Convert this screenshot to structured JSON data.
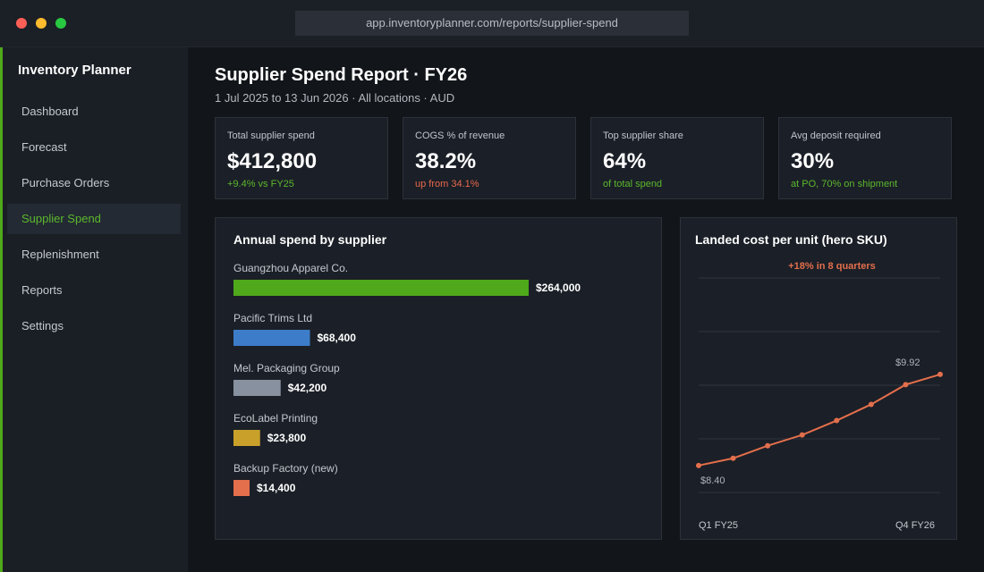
{
  "browser": {
    "url": "app.inventoryplanner.com/reports/supplier-spend"
  },
  "sidebar": {
    "brand": "Inventory Planner",
    "items": [
      "Dashboard",
      "Forecast",
      "Purchase Orders",
      "Supplier Spend",
      "Replenishment",
      "Reports",
      "Settings"
    ],
    "active_item": 3
  },
  "header": {
    "title": "Supplier Spend Report · FY26",
    "subtitle": "1 Jul 2025 to 13 Jun 2026 · All locations · AUD"
  },
  "kpis": [
    {
      "label": "Total supplier spend",
      "value": "$412,800",
      "note": "+9.4% vs FY25",
      "note_color": "#5cb82e"
    },
    {
      "label": "COGS % of revenue",
      "value": "38.2%",
      "note": "up from 34.1%",
      "note_color": "#e8694d"
    },
    {
      "label": "Top supplier share",
      "value": "64%",
      "note": "of total spend",
      "note_color": "#5cb82e"
    },
    {
      "label": "Avg deposit required",
      "value": "30%",
      "note": "at PO, 70% on shipment",
      "note_color": "#5cb82e"
    }
  ],
  "chart_data": [
    {
      "type": "bar",
      "orientation": "horizontal",
      "title": "Annual spend by supplier",
      "categories": [
        "Guangzhou Apparel Co.",
        "Pacific Trims Ltd",
        "Mel. Packaging Group",
        "EcoLabel Printing",
        "Backup Factory (new)"
      ],
      "values": [
        264000,
        68400,
        42200,
        23800,
        14400
      ],
      "value_labels": [
        "$264,000",
        "$68,400",
        "$42,200",
        "$23,800",
        "$14,400"
      ],
      "colors": [
        "#4fa91b",
        "#3d7cc9",
        "#8891a0",
        "#c9a12a",
        "#e36f4c"
      ]
    },
    {
      "type": "line",
      "title": "Landed cost per unit (hero SKU)",
      "annotation": "+18% in 8 quarters",
      "categories": [
        "Q1 FY25",
        null,
        null,
        null,
        null,
        null,
        null,
        "Q4 FY26"
      ],
      "values": [
        8.4,
        8.52,
        8.73,
        8.91,
        9.15,
        9.42,
        9.75,
        9.92
      ],
      "value_labels": [
        "$8.40",
        null,
        null,
        null,
        null,
        null,
        null,
        "$9.92"
      ],
      "color": "#e36f4c",
      "ylim": [
        7.95,
        11.53
      ],
      "grid": true
    }
  ]
}
